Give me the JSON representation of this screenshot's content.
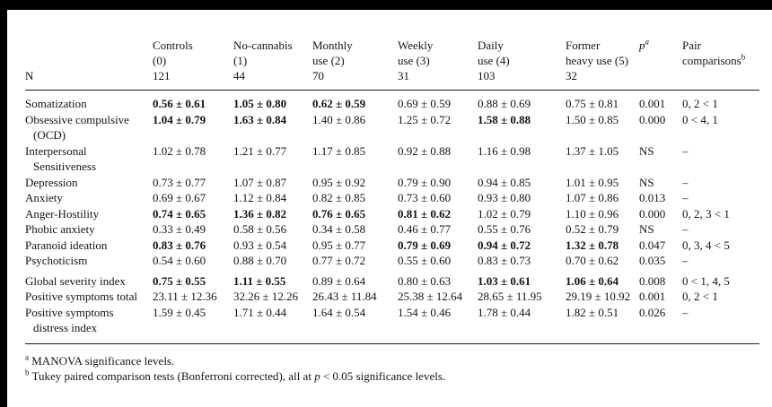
{
  "table": {
    "n_label": "N",
    "columns": [
      {
        "id": "controls",
        "lines": [
          "Controls",
          "(0)"
        ],
        "n": "121"
      },
      {
        "id": "no-cannabis",
        "lines": [
          "No-cannabis",
          "(1)"
        ],
        "n": "44"
      },
      {
        "id": "monthly-use",
        "lines": [
          "Monthly",
          "use (2)"
        ],
        "n": "70"
      },
      {
        "id": "weekly-use",
        "lines": [
          "Weekly",
          "use (3)"
        ],
        "n": "31"
      },
      {
        "id": "daily-use",
        "lines": [
          "Daily",
          "use (4)"
        ],
        "n": "103"
      },
      {
        "id": "former-heavy",
        "lines": [
          "Former",
          "heavy use (5)"
        ],
        "n": "32"
      },
      {
        "id": "p-value",
        "lines": [
          "p"
        ],
        "sup": "a",
        "italic": true,
        "n": ""
      },
      {
        "id": "pair-comparisons",
        "lines": [
          "Pair",
          "comparisons"
        ],
        "sup": "b",
        "n": ""
      }
    ],
    "rows": [
      {
        "label": "Somatization",
        "label2": "",
        "values": [
          {
            "v": "0.56 ± 0.61",
            "b": true
          },
          {
            "v": "1.05 ± 0.80",
            "b": true
          },
          {
            "v": "0.62 ± 0.59",
            "b": true
          },
          {
            "v": "0.69 ± 0.59",
            "b": false
          },
          {
            "v": "0.88 ± 0.69",
            "b": false
          },
          {
            "v": "0.75 ± 0.81",
            "b": false
          }
        ],
        "p": "0.001",
        "pair": "0, 2 < 1"
      },
      {
        "label": "Obsessive compulsive",
        "label2": "(OCD)",
        "values": [
          {
            "v": "1.04 ± 0.79",
            "b": true
          },
          {
            "v": "1.63 ± 0.84",
            "b": true
          },
          {
            "v": "1.40 ± 0.86",
            "b": false
          },
          {
            "v": "1.25 ± 0.72",
            "b": false
          },
          {
            "v": "1.58 ± 0.88",
            "b": true
          },
          {
            "v": "1.50 ± 0.85",
            "b": false
          }
        ],
        "p": "0.000",
        "pair": "0 < 4, 1"
      },
      {
        "label": "Interpersonal",
        "label2": "Sensitiveness",
        "values": [
          {
            "v": "1.02 ± 0.78",
            "b": false
          },
          {
            "v": "1.21 ± 0.77",
            "b": false
          },
          {
            "v": "1.17 ± 0.85",
            "b": false
          },
          {
            "v": "0.92 ± 0.88",
            "b": false
          },
          {
            "v": "1.16 ± 0.98",
            "b": false
          },
          {
            "v": "1.37 ± 1.05",
            "b": false
          }
        ],
        "p": "NS",
        "pair": "–"
      },
      {
        "label": "Depression",
        "label2": "",
        "values": [
          {
            "v": "0.73 ± 0.77",
            "b": false
          },
          {
            "v": "1.07 ± 0.87",
            "b": false
          },
          {
            "v": "0.95 ± 0.92",
            "b": false
          },
          {
            "v": "0.79 ± 0.90",
            "b": false
          },
          {
            "v": "0.94 ± 0.85",
            "b": false
          },
          {
            "v": "1.01 ± 0.95",
            "b": false
          }
        ],
        "p": "NS",
        "pair": "–"
      },
      {
        "label": "Anxiety",
        "label2": "",
        "values": [
          {
            "v": "0.69 ± 0.67",
            "b": false
          },
          {
            "v": "1.12 ± 0.84",
            "b": false
          },
          {
            "v": "0.82 ± 0.85",
            "b": false
          },
          {
            "v": "0.73 ± 0.60",
            "b": false
          },
          {
            "v": "0.93 ± 0.80",
            "b": false
          },
          {
            "v": "1.07 ± 0.86",
            "b": false
          }
        ],
        "p": "0.013",
        "pair": "–"
      },
      {
        "label": "Anger-Hostility",
        "label2": "",
        "values": [
          {
            "v": "0.74 ± 0.65",
            "b": true
          },
          {
            "v": "1.36 ± 0.82",
            "b": true
          },
          {
            "v": "0.76 ± 0.65",
            "b": true
          },
          {
            "v": "0.81 ± 0.62",
            "b": true
          },
          {
            "v": "1.02 ± 0.79",
            "b": false
          },
          {
            "v": "1.10 ± 0.96",
            "b": false
          }
        ],
        "p": "0.000",
        "pair": "0, 2, 3 < 1"
      },
      {
        "label": "Phobic anxiety",
        "label2": "",
        "values": [
          {
            "v": "0.33 ± 0.49",
            "b": false
          },
          {
            "v": "0.58 ± 0.56",
            "b": false
          },
          {
            "v": "0.34 ± 0.58",
            "b": false
          },
          {
            "v": "0.46 ± 0.77",
            "b": false
          },
          {
            "v": "0.55 ± 0.76",
            "b": false
          },
          {
            "v": "0.52 ± 0.79",
            "b": false
          }
        ],
        "p": "NS",
        "pair": "–"
      },
      {
        "label": "Paranoid ideation",
        "label2": "",
        "values": [
          {
            "v": "0.83 ± 0.76",
            "b": true
          },
          {
            "v": "0.93 ± 0.54",
            "b": false
          },
          {
            "v": "0.95 ± 0.77",
            "b": false
          },
          {
            "v": "0.79 ± 0.69",
            "b": true
          },
          {
            "v": "0.94 ± 0.72",
            "b": true
          },
          {
            "v": "1.32 ± 0.78",
            "b": true
          }
        ],
        "p": "0.047",
        "pair": "0, 3, 4 < 5"
      },
      {
        "label": "Psychoticism",
        "label2": "",
        "values": [
          {
            "v": "0.54 ± 0.60",
            "b": false
          },
          {
            "v": "0.88 ± 0.70",
            "b": false
          },
          {
            "v": "0.77 ± 0.72",
            "b": false
          },
          {
            "v": "0.55 ± 0.60",
            "b": false
          },
          {
            "v": "0.83 ± 0.73",
            "b": false
          },
          {
            "v": "0.70 ± 0.62",
            "b": false
          }
        ],
        "p": "0.035",
        "pair": "–"
      },
      {
        "label": "Global severity index",
        "label2": "",
        "gap_before": true,
        "values": [
          {
            "v": "0.75 ± 0.55",
            "b": true
          },
          {
            "v": "1.11 ± 0.55",
            "b": true
          },
          {
            "v": "0.89 ± 0.64",
            "b": false
          },
          {
            "v": "0.80 ± 0.63",
            "b": false
          },
          {
            "v": "1.03 ± 0.61",
            "b": true
          },
          {
            "v": "1.06 ± 0.64",
            "b": true
          }
        ],
        "p": "0.008",
        "pair": "0 < 1, 4, 5"
      },
      {
        "label": "Positive symptoms total",
        "label2": "",
        "values": [
          {
            "v": "23.11 ± 12.36",
            "b": false
          },
          {
            "v": "32.26 ± 12.26",
            "b": false
          },
          {
            "v": "26.43 ± 11.84",
            "b": false
          },
          {
            "v": "25.38 ± 12.64",
            "b": false
          },
          {
            "v": "28.65 ± 11.95",
            "b": false
          },
          {
            "v": "29.19 ± 10.92",
            "b": false
          }
        ],
        "p": "0.001",
        "pair": "0, 2 < 1"
      },
      {
        "label": "Positive symptoms",
        "label2": "distress index",
        "values": [
          {
            "v": "1.59 ± 0.45",
            "b": false
          },
          {
            "v": "1.71 ± 0.44",
            "b": false
          },
          {
            "v": "1.64 ± 0.54",
            "b": false
          },
          {
            "v": "1.54 ± 0.46",
            "b": false
          },
          {
            "v": "1.78 ± 0.44",
            "b": false
          },
          {
            "v": "1.82 ± 0.51",
            "b": false
          }
        ],
        "p": "0.026",
        "pair": "–"
      }
    ]
  },
  "footnotes": [
    {
      "sup": "a",
      "pre": "MANOVA significance levels.",
      "italic": "",
      "post": ""
    },
    {
      "sup": "b",
      "pre": "Tukey paired comparison tests (Bonferroni corrected), all at ",
      "italic": "p",
      "post": " < 0.05 significance levels."
    }
  ]
}
